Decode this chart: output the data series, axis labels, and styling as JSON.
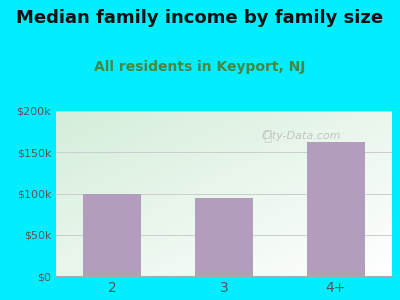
{
  "title": "Median family income by family size",
  "subtitle": "All residents in Keyport, NJ",
  "categories": [
    "2",
    "3",
    "4+"
  ],
  "values": [
    100000,
    95000,
    163000
  ],
  "bar_color": "#b39dbd",
  "title_fontsize": 13,
  "subtitle_fontsize": 10,
  "subtitle_color": "#448844",
  "title_color": "#111111",
  "ylim": [
    0,
    200000
  ],
  "yticks": [
    0,
    50000,
    100000,
    150000,
    200000
  ],
  "ytick_labels": [
    "$0",
    "$50k",
    "$100k",
    "$150k",
    "$200k"
  ],
  "background_outer": "#00eeff",
  "watermark": "City-Data.com",
  "tick_color": "#555555",
  "grid_color": "#cccccc"
}
